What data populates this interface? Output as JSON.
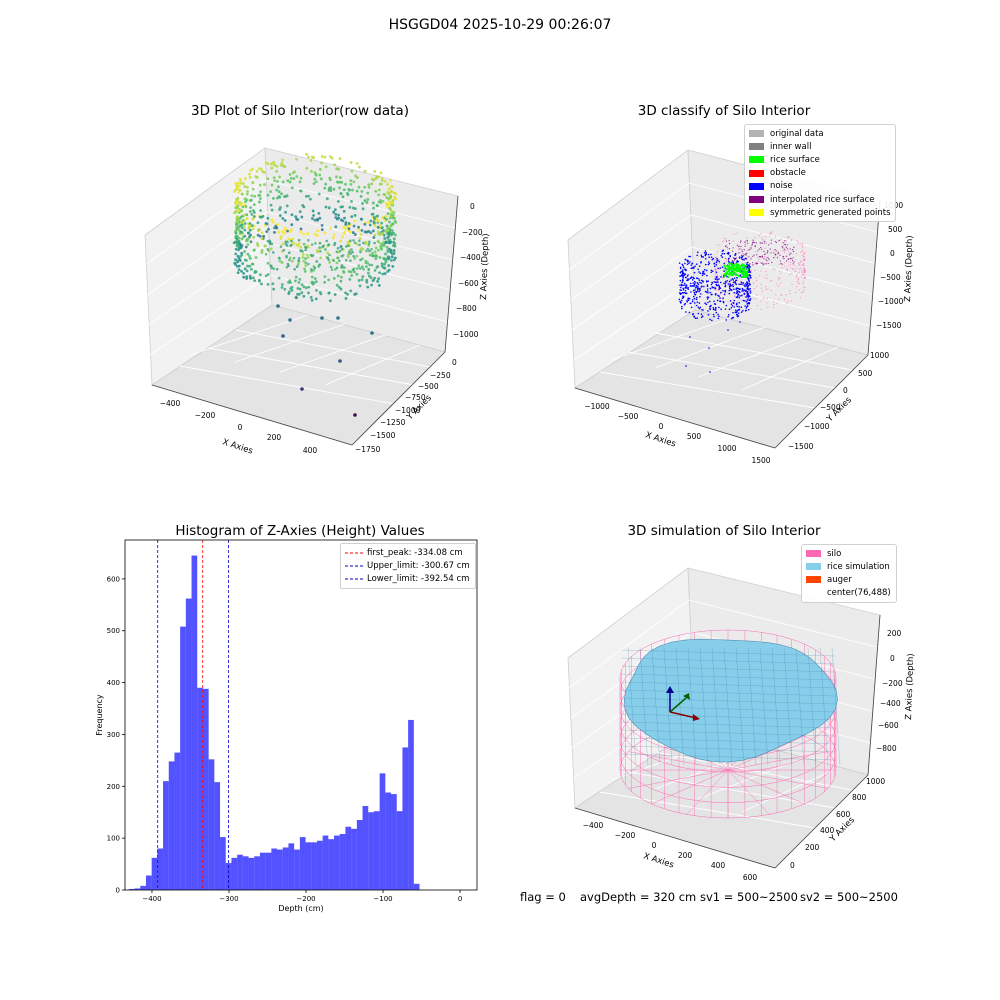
{
  "suptitle": "HSGGD04 2025-10-29 00:26:07",
  "footer": {
    "flag": "flag = 0",
    "avg_depth": "avgDepth = 320 cm",
    "sv1": "sv1 = 500~2500",
    "sv2": "sv2 = 500~2500"
  },
  "chart_data": [
    {
      "type": "scatter",
      "projection": "3d",
      "title": "3D Plot of Silo Interior(row data)",
      "xlabel": "X Axies",
      "ylabel": "Y Axies",
      "zlabel": "Z Axies (Depth)",
      "x_ticks": [
        "−400",
        "−200",
        "0",
        "200",
        "400"
      ],
      "y_ticks": [
        "0",
        "−250",
        "−500",
        "−750",
        "−1000",
        "−1250",
        "−1500",
        "−1750"
      ],
      "z_ticks": [
        "0",
        "−200",
        "−400",
        "−600",
        "−800",
        "−1000"
      ],
      "colormap": "viridis",
      "grid": true
    },
    {
      "type": "scatter",
      "projection": "3d",
      "title": "3D classify of Silo Interior",
      "xlabel": "X Axies",
      "ylabel": "Y Axies",
      "zlabel": "Z Axies (Depth)",
      "x_ticks": [
        "−1000",
        "−500",
        "0",
        "500",
        "1000",
        "1500"
      ],
      "y_ticks": [
        "1000",
        "500",
        "0",
        "−500",
        "−1000",
        "−1500"
      ],
      "z_ticks": [
        "1000",
        "500",
        "0",
        "−500",
        "−1000",
        "−1500"
      ],
      "legend": [
        {
          "name": "original data",
          "color": "#b3b3b3"
        },
        {
          "name": "inner wall",
          "color": "#808080"
        },
        {
          "name": "rice surface",
          "color": "#00ff00"
        },
        {
          "name": "obstacle",
          "color": "#ff0000"
        },
        {
          "name": "noise",
          "color": "#0000ff"
        },
        {
          "name": "interpolated rice surface",
          "color": "#800080"
        },
        {
          "name": "symmetric generated points",
          "color": "#ffff00"
        }
      ],
      "legend_position": "top-right",
      "grid": true
    },
    {
      "type": "bar",
      "subtype": "histogram",
      "title": "Histogram of Z-Axies (Height) Values",
      "xlabel": "Depth (cm)",
      "ylabel": "Frequency",
      "xlim": [
        -435,
        22
      ],
      "ylim": [
        0,
        675
      ],
      "x_ticks": [
        -400,
        -300,
        -200,
        -100,
        0
      ],
      "x_tick_labels": [
        "−400",
        "−300",
        "−200",
        "−100",
        "0"
      ],
      "y_ticks": [
        0,
        100,
        200,
        300,
        400,
        500,
        600
      ],
      "bin_start": -430,
      "bin_width": 7.4,
      "values": [
        2,
        3,
        8,
        28,
        62,
        80,
        210,
        248,
        265,
        508,
        562,
        645,
        390,
        388,
        252,
        208,
        102,
        52,
        62,
        68,
        65,
        62,
        65,
        72,
        72,
        80,
        78,
        82,
        90,
        78,
        102,
        92,
        92,
        95,
        105,
        98,
        105,
        108,
        122,
        118,
        135,
        162,
        150,
        152,
        225,
        188,
        185,
        152,
        275,
        328,
        12
      ],
      "bar_color": "#0000ff",
      "vlines": [
        {
          "label": "first_peak: -334.08 cm",
          "x": -334.08,
          "color": "#ff0000"
        },
        {
          "label": "Upper_limit: -300.67 cm",
          "x": -300.67,
          "color": "#0000cc"
        },
        {
          "label": "Lower_limit: -392.54 cm",
          "x": -392.54,
          "color": "#0000cc"
        }
      ],
      "legend_position": "top-right"
    },
    {
      "type": "area",
      "projection": "3d",
      "title": "3D simulation of Silo Interior",
      "xlabel": "X Axies",
      "ylabel": "Y Axies",
      "zlabel": "Z Axies (Depth)",
      "x_ticks": [
        "−400",
        "−200",
        "0",
        "200",
        "400",
        "600"
      ],
      "y_ticks": [
        "0",
        "200",
        "400",
        "600",
        "800",
        "1000"
      ],
      "z_ticks": [
        "200",
        "0",
        "−200",
        "−400",
        "−600",
        "−800"
      ],
      "legend": [
        {
          "name": "silo",
          "color": "#ff69b4"
        },
        {
          "name": "rice simulation",
          "color": "#87ceeb"
        },
        {
          "name": "auger",
          "color": "#ff4500"
        },
        {
          "name": "center(76,488)",
          "color": ""
        }
      ],
      "legend_position": "top-right",
      "grid": true
    }
  ]
}
